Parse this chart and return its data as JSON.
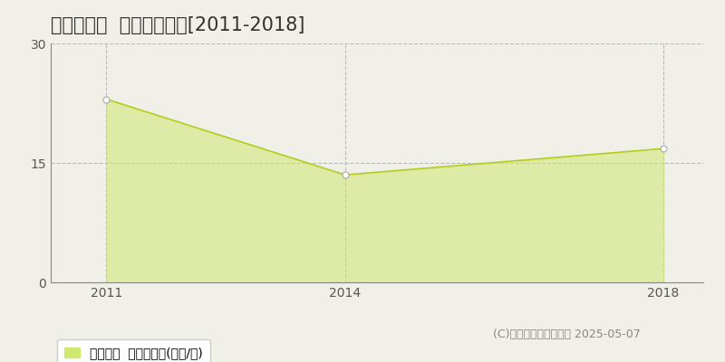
{
  "title": "高槻市井尻  土地価格推移[2011-2018]",
  "years": [
    2011,
    2014,
    2018
  ],
  "values": [
    23.0,
    13.5,
    16.8
  ],
  "fill_color": "#cfe870",
  "fill_alpha": 0.55,
  "line_color": "#b8cc20",
  "marker_color": "#ffffff",
  "marker_edge_color": "#aaaaaa",
  "ylim": [
    0,
    30
  ],
  "yticks": [
    0,
    15,
    30
  ],
  "xticks": [
    2011,
    2014,
    2018
  ],
  "xlim_left": 2010.3,
  "xlim_right": 2018.5,
  "grid_color": "#bbbbbb",
  "background_color": "#f0f0e8",
  "legend_label": "土地価格  平均坪単価(万円/坪)",
  "copyright_text": "(C)土地価格ドットコム 2025-05-07",
  "title_fontsize": 15,
  "axis_fontsize": 10,
  "legend_fontsize": 10,
  "copyright_fontsize": 9
}
